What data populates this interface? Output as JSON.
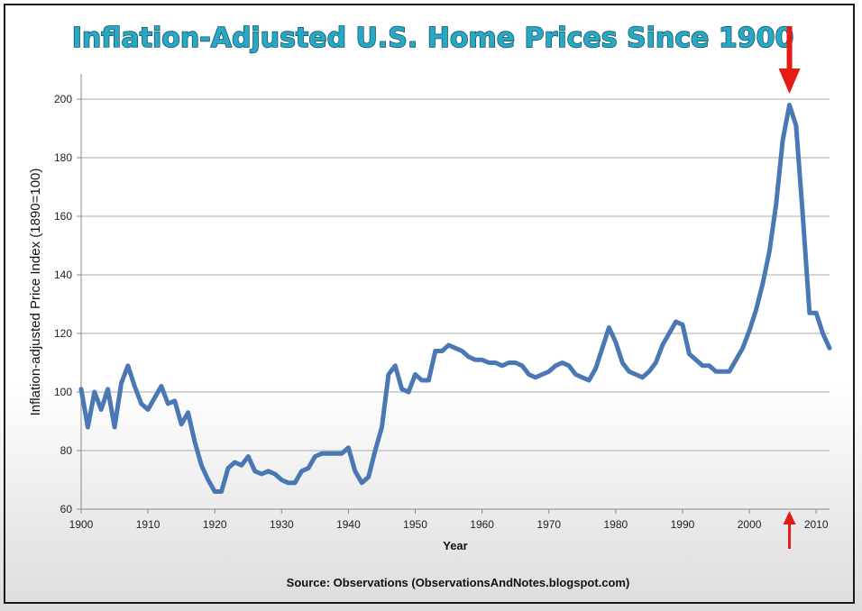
{
  "chart_data": {
    "type": "line",
    "title": "Inflation-Adjusted U.S. Home Prices Since 1900",
    "xlabel": "Year",
    "ylabel": "Inflation-adjusted  Price Index (1890=100)",
    "source": "Source: Observations  (ObservationsAndNotes.blogspot.com)",
    "xlim": [
      1900,
      2012
    ],
    "ylim": [
      60,
      200
    ],
    "x_ticks": [
      1900,
      1910,
      1920,
      1930,
      1940,
      1950,
      1960,
      1970,
      1980,
      1990,
      2000,
      2010
    ],
    "y_ticks": [
      60,
      80,
      100,
      120,
      140,
      160,
      180,
      200
    ],
    "grid": true,
    "line_color": "#4a78b4",
    "annotation_color": "#e41b17",
    "annotation_year": 2006,
    "series": [
      {
        "x": [
          1900,
          1901,
          1902,
          1903,
          1904,
          1905,
          1906,
          1907,
          1908,
          1909,
          1910,
          1911,
          1912,
          1913,
          1914,
          1915,
          1916,
          1917,
          1918,
          1919,
          1920,
          1921,
          1922,
          1923,
          1924,
          1925,
          1926,
          1927,
          1928,
          1929,
          1930,
          1931,
          1932,
          1933,
          1934,
          1935,
          1936,
          1937,
          1938,
          1939,
          1940,
          1941,
          1942,
          1943,
          1944,
          1945,
          1946,
          1947,
          1948,
          1949,
          1950,
          1951,
          1952,
          1953,
          1954,
          1955,
          1956,
          1957,
          1958,
          1959,
          1960,
          1961,
          1962,
          1963,
          1964,
          1965,
          1966,
          1967,
          1968,
          1969,
          1970,
          1971,
          1972,
          1973,
          1974,
          1975,
          1976,
          1977,
          1978,
          1979,
          1980,
          1981,
          1982,
          1983,
          1984,
          1985,
          1986,
          1987,
          1988,
          1989,
          1990,
          1991,
          1992,
          1993,
          1994,
          1995,
          1996,
          1997,
          1998,
          1999,
          2000,
          2001,
          2002,
          2003,
          2004,
          2005,
          2006,
          2007,
          2008,
          2009,
          2010,
          2011,
          2012
        ],
        "y": [
          101,
          88,
          100,
          94,
          101,
          88,
          103,
          109,
          102,
          96,
          94,
          98,
          102,
          96,
          97,
          89,
          93,
          83,
          75,
          70,
          66,
          66,
          74,
          76,
          75,
          78,
          73,
          72,
          73,
          72,
          70,
          69,
          69,
          73,
          74,
          78,
          79,
          79,
          79,
          79,
          81,
          73,
          69,
          71,
          80,
          88,
          106,
          109,
          101,
          100,
          106,
          104,
          104,
          114,
          114,
          116,
          115,
          114,
          112,
          111,
          111,
          110,
          110,
          109,
          110,
          110,
          109,
          106,
          105,
          106,
          107,
          109,
          110,
          109,
          106,
          105,
          104,
          108,
          115,
          122,
          117,
          110,
          107,
          106,
          105,
          107,
          110,
          116,
          120,
          124,
          123,
          113,
          111,
          109,
          109,
          107,
          107,
          107,
          111,
          115,
          121,
          128,
          137,
          148,
          164,
          186,
          198,
          191,
          160,
          127,
          127,
          120,
          115
        ]
      }
    ]
  }
}
